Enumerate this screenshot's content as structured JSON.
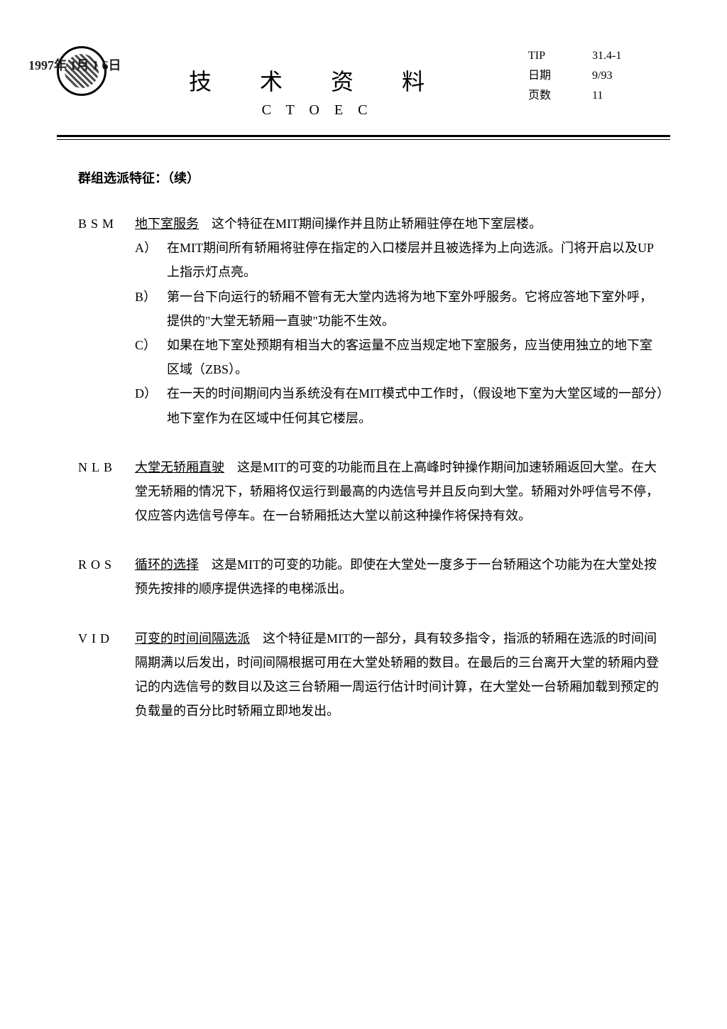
{
  "header": {
    "main_title": "技 术 资 料",
    "sub_title": "C T O E C",
    "tip_label": "TIP",
    "tip_value": "31.4-1",
    "date_label": "日期",
    "date_value": "9/93",
    "page_label": "页数",
    "page_value": "11",
    "overlay_year": "1997年 1月 1 6日"
  },
  "section_heading": "群组选派特征：（续）",
  "entries": [
    {
      "code": "BSM",
      "term": "地下室服务",
      "description": "这个特征在МIТ期间操作并且防止轿厢驻停在地下室层楼。",
      "sub_items": [
        {
          "label": "A）",
          "text": "在МIТ期间所有轿厢将驻停在指定的入口楼层并且被选择为上向选派。门将开启以及UP上指示灯点亮。"
        },
        {
          "label": "B）",
          "text": "第一台下向运行的轿厢不管有无大堂内选将为地下室外呼服务。它将应答地下室外呼，提供的\"大堂无轿厢一直驶\"功能不生效。"
        },
        {
          "label": "C）",
          "text": "如果在地下室处预期有相当大的客运量不应当规定地下室服务，应当使用独立的地下室区域（ZBS）。"
        },
        {
          "label": "D）",
          "text": "在一天的时间期间内当系统没有在МIТ模式中工作时，（假设地下室为大堂区域的一部分）地下室作为在区域中任何其它楼层。"
        }
      ]
    },
    {
      "code": "NLB",
      "term": "大堂无轿厢直驶",
      "description": "这是МIТ的可变的功能而且在上高峰时钟操作期间加速轿厢返回大堂。在大堂无轿厢的情况下，轿厢将仅运行到最高的内选信号并且反向到大堂。轿厢对外呼信号不停，仅应答内选信号停车。在一台轿厢抵达大堂以前这种操作将保持有效。",
      "sub_items": []
    },
    {
      "code": "ROS",
      "term": "循环的选择",
      "description": "这是МIТ的可变的功能。即使在大堂处一度多于一台轿厢这个功能为在大堂处按预先按排的顺序提供选择的电梯派出。",
      "sub_items": []
    },
    {
      "code": "VID",
      "term": "可变的时间间隔选派",
      "description": "这个特征是МIТ的一部分，具有较多指令，指派的轿厢在选派的时间间隔期满以后发出，时间间隔根据可用在大堂处轿厢的数目。在最后的三台离开大堂的轿厢内登记的内选信号的数目以及这三台轿厢一周运行估计时间计算，在大堂处一台轿厢加载到预定的负载量的百分比时轿厢立即地发出。",
      "sub_items": []
    }
  ]
}
